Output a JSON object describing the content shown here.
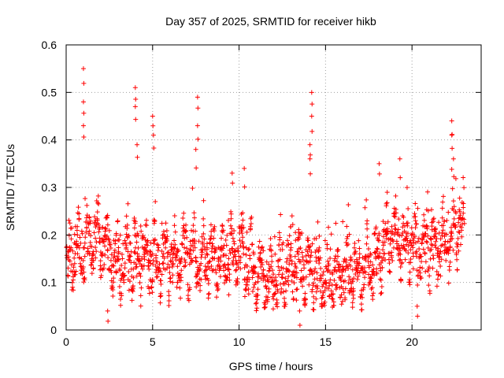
{
  "chart_data": {
    "type": "scatter",
    "title": "Day 357 of 2025, SRMTID for receiver hikb",
    "xlabel": "GPS time / hours",
    "ylabel": "SRMTID / TECUs",
    "xlim": [
      0,
      24
    ],
    "ylim": [
      0,
      0.6
    ],
    "x_ticks": [
      0,
      5,
      10,
      15,
      20
    ],
    "x_tick_labels": [
      "0",
      "5",
      "10",
      "15",
      "20"
    ],
    "y_ticks": [
      0,
      0.1,
      0.2,
      0.3,
      0.4,
      0.5,
      0.6
    ],
    "y_tick_labels": [
      "0",
      "0.1",
      "0.2",
      "0.3",
      "0.4",
      "0.5",
      "0.6"
    ],
    "grid": true,
    "marker": "+",
    "marker_color": "#ff0000",
    "baseline_profile": {
      "x": [
        0,
        1,
        2,
        3,
        4,
        5,
        6,
        7,
        8,
        9,
        10,
        11,
        12,
        13,
        14,
        15,
        16,
        17,
        18,
        19,
        20,
        21,
        22,
        23
      ],
      "y": [
        0.14,
        0.17,
        0.19,
        0.15,
        0.15,
        0.15,
        0.15,
        0.16,
        0.15,
        0.14,
        0.17,
        0.12,
        0.1,
        0.14,
        0.13,
        0.1,
        0.12,
        0.12,
        0.15,
        0.2,
        0.17,
        0.16,
        0.19,
        0.22
      ]
    },
    "spikes": [
      {
        "x": 1.0,
        "y": 0.55
      },
      {
        "x": 1.0,
        "y": 0.48
      },
      {
        "x": 1.0,
        "y": 0.43
      },
      {
        "x": 4.0,
        "y": 0.51
      },
      {
        "x": 4.0,
        "y": 0.47
      },
      {
        "x": 4.1,
        "y": 0.39
      },
      {
        "x": 5.0,
        "y": 0.45
      },
      {
        "x": 5.05,
        "y": 0.41
      },
      {
        "x": 7.6,
        "y": 0.49
      },
      {
        "x": 7.6,
        "y": 0.43
      },
      {
        "x": 7.5,
        "y": 0.38
      },
      {
        "x": 9.6,
        "y": 0.33
      },
      {
        "x": 10.3,
        "y": 0.34
      },
      {
        "x": 14.2,
        "y": 0.5
      },
      {
        "x": 14.2,
        "y": 0.45
      },
      {
        "x": 14.1,
        "y": 0.39
      },
      {
        "x": 14.1,
        "y": 0.36
      },
      {
        "x": 18.1,
        "y": 0.35
      },
      {
        "x": 19.3,
        "y": 0.36
      },
      {
        "x": 22.3,
        "y": 0.44
      },
      {
        "x": 22.3,
        "y": 0.41
      },
      {
        "x": 22.4,
        "y": 0.36
      },
      {
        "x": 2.4,
        "y": 0.04
      },
      {
        "x": 13.5,
        "y": 0.04
      },
      {
        "x": 20.3,
        "y": 0.05
      }
    ],
    "point_count": 1800
  }
}
